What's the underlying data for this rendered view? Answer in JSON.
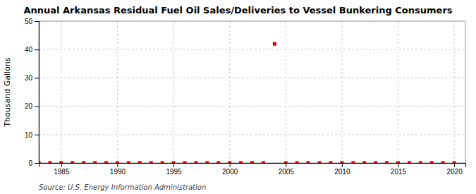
{
  "chart_data": {
    "type": "scatter",
    "title": "Annual Arkansas Residual Fuel Oil Sales/Deliveries to Vessel Bunkering Consumers",
    "y_label": "Thousand Gallons",
    "annotations": [
      "Source: U.S. Energy Information Administration"
    ],
    "x": [
      1983,
      1984,
      1985,
      1986,
      1987,
      1988,
      1989,
      1990,
      1991,
      1992,
      1993,
      1994,
      1995,
      1996,
      1997,
      1998,
      1999,
      2000,
      2001,
      2002,
      2003,
      2004,
      2005,
      2006,
      2007,
      2008,
      2009,
      2010,
      2011,
      2012,
      2013,
      2014,
      2015,
      2016,
      2017,
      2018,
      2019,
      2020
    ],
    "values": [
      0,
      0,
      0,
      0,
      0,
      0,
      0,
      0,
      0,
      0,
      0,
      0,
      0,
      0,
      0,
      0,
      0,
      0,
      0,
      0,
      0,
      42,
      0,
      0,
      0,
      0,
      0,
      0,
      0,
      0,
      0,
      0,
      0,
      0,
      0,
      0,
      0,
      0
    ],
    "color": "#cc0000",
    "marker": "square",
    "xlim": [
      1983,
      2021
    ],
    "xticks": [
      1985,
      1990,
      1995,
      2000,
      2005,
      2010,
      2015,
      2020
    ],
    "ylim": [
      0,
      50
    ],
    "yticks": [
      0,
      10,
      20,
      30,
      40,
      50
    ],
    "grid": true
  }
}
